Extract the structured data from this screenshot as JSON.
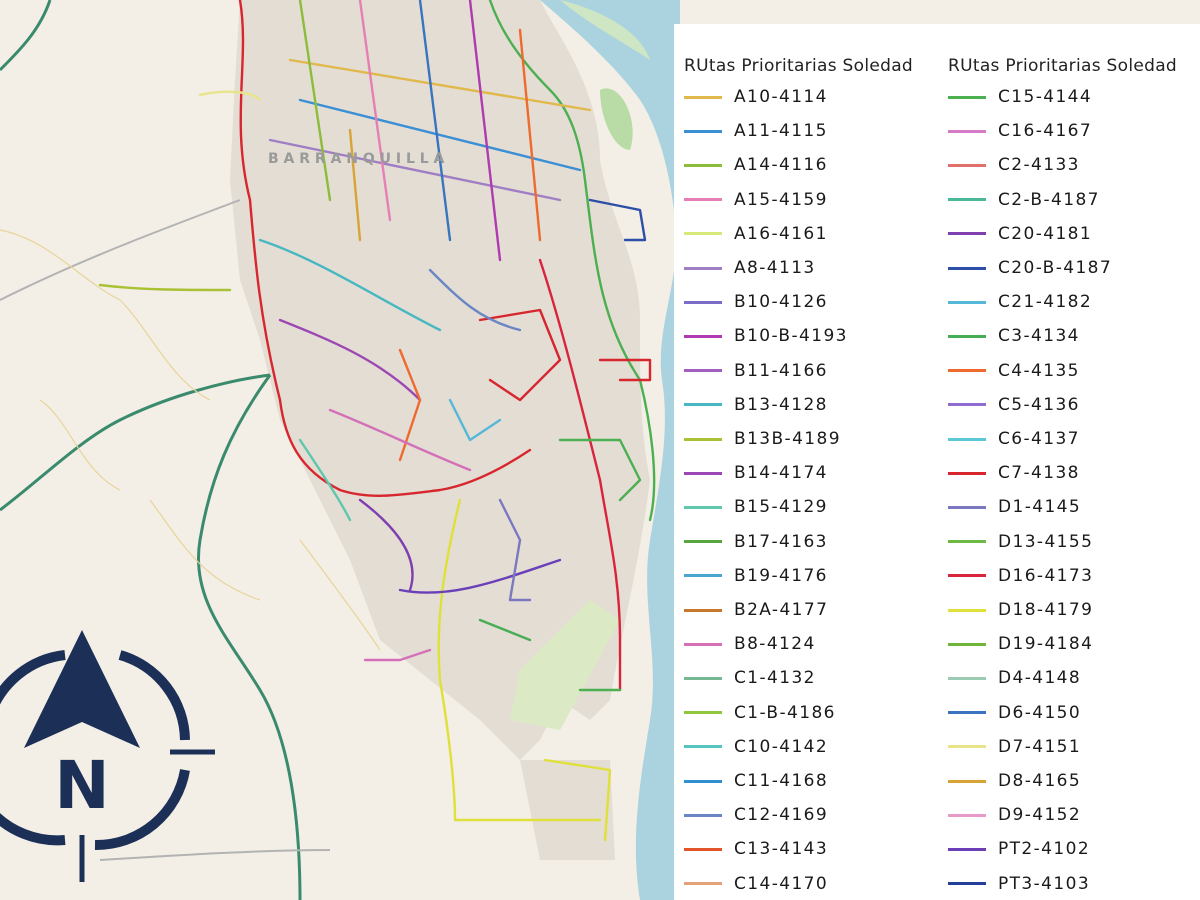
{
  "map": {
    "place_label": "B A R R A N Q U I L L A"
  },
  "legend": {
    "columns": [
      {
        "title": "RUtas Prioritarias Soledad",
        "items": [
          {
            "label": "A10-4114",
            "color": "#e1b84a"
          },
          {
            "label": "A11-4115",
            "color": "#3b8fd4"
          },
          {
            "label": "A14-4116",
            "color": "#8bbd3a"
          },
          {
            "label": "A15-4159",
            "color": "#e67fb6"
          },
          {
            "label": "A16-4161",
            "color": "#d8e87a"
          },
          {
            "label": "A8-4113",
            "color": "#a07ec4"
          },
          {
            "label": "B10-4126",
            "color": "#7b6cc8"
          },
          {
            "label": "B10-B-4193",
            "color": "#b03ab0"
          },
          {
            "label": "B11-4166",
            "color": "#a060c0"
          },
          {
            "label": "B13-4128",
            "color": "#47b7c2"
          },
          {
            "label": "B13B-4189",
            "color": "#a9c234"
          },
          {
            "label": "B14-4174",
            "color": "#9c48b4"
          },
          {
            "label": "B15-4129",
            "color": "#5fc7ac"
          },
          {
            "label": "B17-4163",
            "color": "#58a640"
          },
          {
            "label": "B19-4176",
            "color": "#4aa6cf"
          },
          {
            "label": "B2A-4177",
            "color": "#c8782e"
          },
          {
            "label": "B8-4124",
            "color": "#d470b8"
          },
          {
            "label": "C1-4132",
            "color": "#76b892"
          },
          {
            "label": "C1-B-4186",
            "color": "#8ec63f"
          },
          {
            "label": "C10-4142",
            "color": "#56c4c0"
          },
          {
            "label": "C11-4168",
            "color": "#2f8fd0"
          },
          {
            "label": "C12-4169",
            "color": "#6a86c4"
          },
          {
            "label": "C13-4143",
            "color": "#e4542a"
          },
          {
            "label": "C14-4170",
            "color": "#e3a27a"
          }
        ]
      },
      {
        "title": "RUtas Prioritarias Soledad",
        "items": [
          {
            "label": "C15-4144",
            "color": "#4caf50"
          },
          {
            "label": "C16-4167",
            "color": "#d47ac6"
          },
          {
            "label": "C2-4133",
            "color": "#e2706a"
          },
          {
            "label": "C2-B-4187",
            "color": "#4cb89a"
          },
          {
            "label": "C20-4181",
            "color": "#7f3fb0"
          },
          {
            "label": "C20-B-4187",
            "color": "#2d4fa8"
          },
          {
            "label": "C21-4182",
            "color": "#56b8d8"
          },
          {
            "label": "C3-4134",
            "color": "#46ad55"
          },
          {
            "label": "C4-4135",
            "color": "#ee6a2f"
          },
          {
            "label": "C5-4136",
            "color": "#8f6cd0"
          },
          {
            "label": "C6-4137",
            "color": "#5ac8d6"
          },
          {
            "label": "C7-4138",
            "color": "#d8262e"
          },
          {
            "label": "D1-4145",
            "color": "#7b78bf"
          },
          {
            "label": "D13-4155",
            "color": "#6cb944"
          },
          {
            "label": "D16-4173",
            "color": "#d9253b"
          },
          {
            "label": "D18-4179",
            "color": "#dfe03a"
          },
          {
            "label": "D19-4184",
            "color": "#6fb53a"
          },
          {
            "label": "D4-4148",
            "color": "#9ccbb3"
          },
          {
            "label": "D6-4150",
            "color": "#3a74c0"
          },
          {
            "label": "D7-4151",
            "color": "#e8e48a"
          },
          {
            "label": "D8-4165",
            "color": "#d8a437"
          },
          {
            "label": "D9-4152",
            "color": "#e79ac8"
          },
          {
            "label": "PT2-4102",
            "color": "#6a3fb8"
          },
          {
            "label": "PT3-4103",
            "color": "#243f9a"
          }
        ]
      }
    ]
  },
  "compass": {
    "letter": "N",
    "color": "#1c2f57"
  }
}
